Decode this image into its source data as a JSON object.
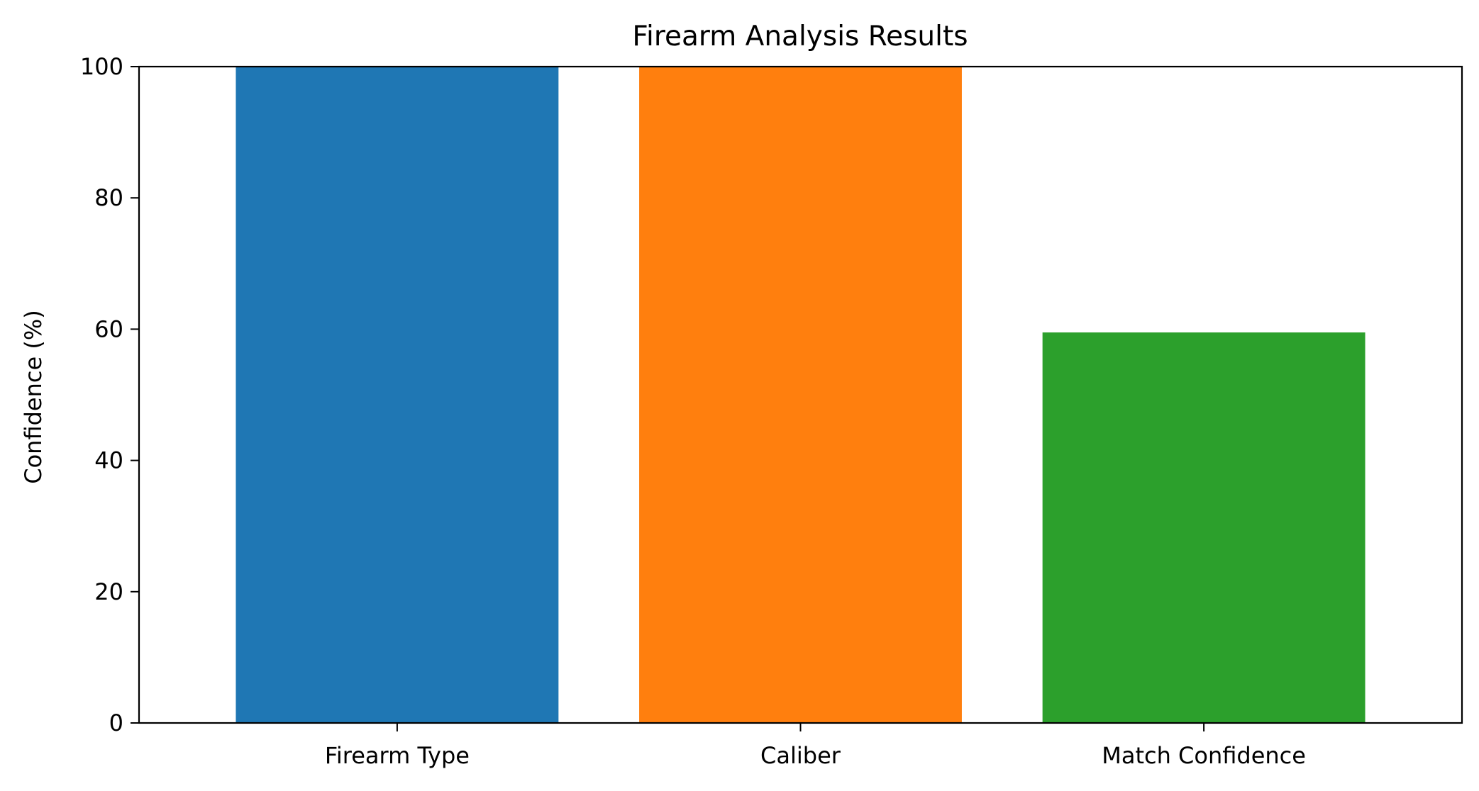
{
  "chart_data": {
    "type": "bar",
    "title": "Firearm Analysis Results",
    "xlabel": "",
    "ylabel": "Confidence (%)",
    "categories": [
      "Firearm Type",
      "Caliber",
      "Match Confidence"
    ],
    "values": [
      100,
      100,
      59.5
    ],
    "colors": [
      "#1f77b4",
      "#ff7f0e",
      "#2ca02c"
    ],
    "ylim": [
      0,
      100
    ],
    "yticks": [
      0,
      20,
      40,
      60,
      80,
      100
    ],
    "grid": false,
    "legend": "none"
  }
}
